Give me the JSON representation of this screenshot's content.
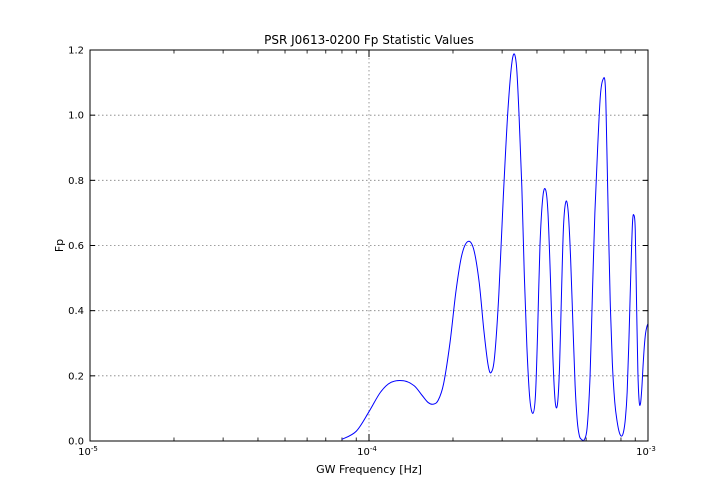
{
  "chart_data": {
    "type": "line",
    "title": "PSR J0613-0200 Fp Statistic Values",
    "xlabel": "GW Frequency [Hz]",
    "ylabel": "Fp",
    "xscale": "log",
    "xlim": [
      1e-05,
      0.001
    ],
    "ylim": [
      0.0,
      1.2
    ],
    "grid": true,
    "x_ticks": [
      {
        "value": 1e-05,
        "base": "10",
        "exp": "-5"
      },
      {
        "value": 0.0001,
        "base": "10",
        "exp": "-4"
      },
      {
        "value": 0.001,
        "base": "10",
        "exp": "-3"
      }
    ],
    "y_ticks": [
      "0.0",
      "0.2",
      "0.4",
      "0.6",
      "0.8",
      "1.0",
      "1.2"
    ],
    "line_color": "#0000ff",
    "series": [
      {
        "x": [
          8e-05,
          9e-05,
          0.0001,
          0.00011,
          0.00012,
          0.000133,
          0.000145,
          0.000155,
          0.000163,
          0.00017,
          0.000177,
          0.000185,
          0.000195,
          0.000205,
          0.000215,
          0.000226,
          0.000237,
          0.000248,
          0.000258,
          0.000267,
          0.000274,
          0.000282,
          0.000292,
          0.000303,
          0.000315,
          0.000327,
          0.000337,
          0.000345,
          0.000353,
          0.00036,
          0.000368,
          0.000377,
          0.000387,
          0.000395,
          0.000402,
          0.00041,
          0.00042,
          0.00043,
          0.000438,
          0.000447,
          0.000456,
          0.000465,
          0.000474,
          0.000482,
          0.00049,
          0.000498,
          0.000508,
          0.000518,
          0.000528,
          0.000538,
          0.000548,
          0.000558,
          0.000568,
          0.000578,
          0.00059,
          0.000605,
          0.00062,
          0.000632,
          0.000645,
          0.00066,
          0.000675,
          0.00069,
          0.000703,
          0.000712,
          0.000722,
          0.000732,
          0.000745,
          0.00076,
          0.000775,
          0.00079,
          0.000805,
          0.000818,
          0.00083,
          0.000842,
          0.000855,
          0.000868,
          0.00088,
          0.00089,
          0.0009,
          0.00091,
          0.00092,
          0.00093,
          0.00094,
          0.00095,
          0.00096,
          0.00097,
          0.00098,
          0.00099,
          0.001
        ],
        "y": [
          0.005,
          0.03,
          0.09,
          0.15,
          0.18,
          0.185,
          0.17,
          0.14,
          0.118,
          0.113,
          0.125,
          0.175,
          0.3,
          0.46,
          0.57,
          0.612,
          0.59,
          0.49,
          0.34,
          0.235,
          0.21,
          0.26,
          0.45,
          0.75,
          1.02,
          1.175,
          1.16,
          1.0,
          0.78,
          0.52,
          0.29,
          0.13,
          0.085,
          0.14,
          0.33,
          0.6,
          0.75,
          0.77,
          0.7,
          0.5,
          0.26,
          0.12,
          0.115,
          0.23,
          0.46,
          0.66,
          0.735,
          0.7,
          0.56,
          0.36,
          0.17,
          0.06,
          0.015,
          0.005,
          0.003,
          0.04,
          0.2,
          0.45,
          0.7,
          0.9,
          1.06,
          1.11,
          1.09,
          0.9,
          0.65,
          0.43,
          0.24,
          0.12,
          0.06,
          0.025,
          0.015,
          0.03,
          0.07,
          0.15,
          0.32,
          0.52,
          0.67,
          0.693,
          0.65,
          0.42,
          0.21,
          0.12,
          0.115,
          0.16,
          0.23,
          0.29,
          0.33,
          0.35,
          0.36
        ]
      }
    ]
  }
}
